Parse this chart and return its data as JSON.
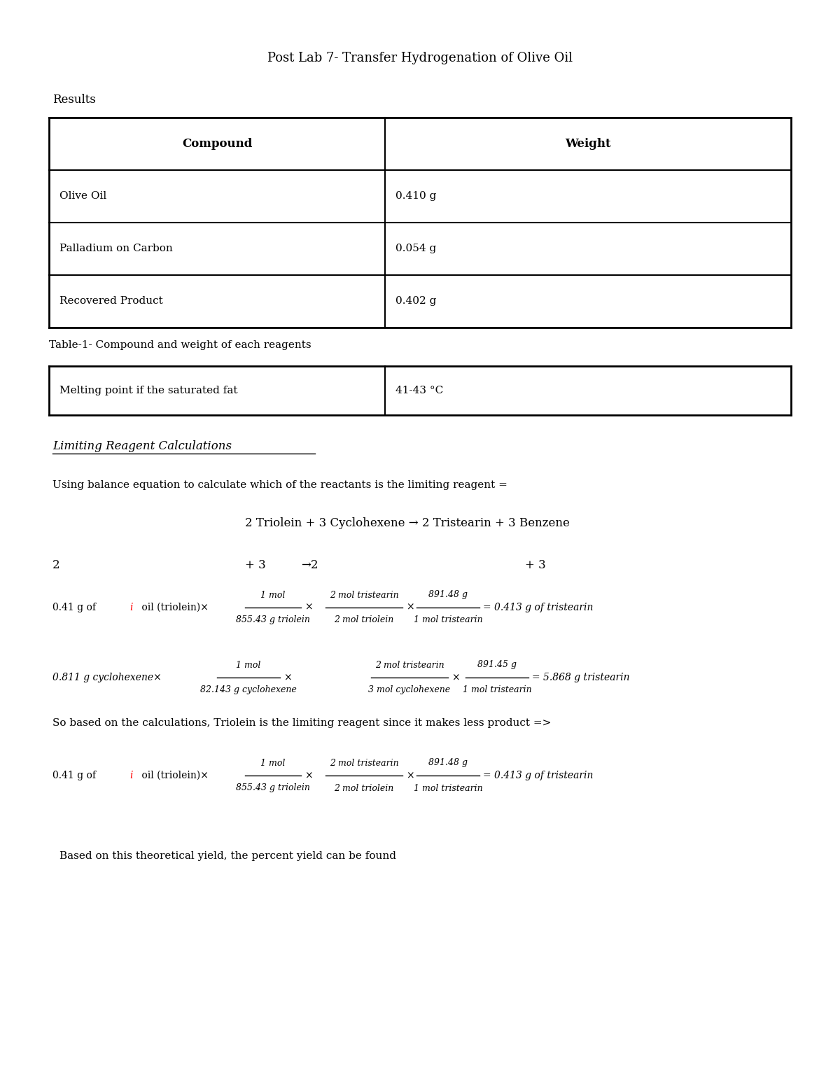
{
  "title": "Post Lab 7- Transfer Hydrogenation of Olive Oil",
  "bg_color": "#ffffff",
  "font_family": "serif",
  "table1_headers": [
    "Compound",
    "Weight"
  ],
  "table1_rows": [
    [
      "Olive Oil",
      "0.410 g"
    ],
    [
      "Palladium on Carbon",
      "0.054 g"
    ],
    [
      "Recovered Product",
      "0.402 g"
    ]
  ],
  "table1_caption": "Table-1- Compound and weight of each reagents",
  "table2_rows": [
    [
      "Melting point if the saturated fat",
      "41-43 °C"
    ]
  ],
  "section_limiting": "Limiting Reagent Calculations",
  "line_balance_eq": "Using balance equation to calculate which of the reactants is the limiting reagent =",
  "reaction_eq": "2 Triolein + 3 Cyclohexene → 2 Tristearin + 3 Benzene",
  "line_below_text": "Based on this theoretical yield, the percent yield can be found"
}
